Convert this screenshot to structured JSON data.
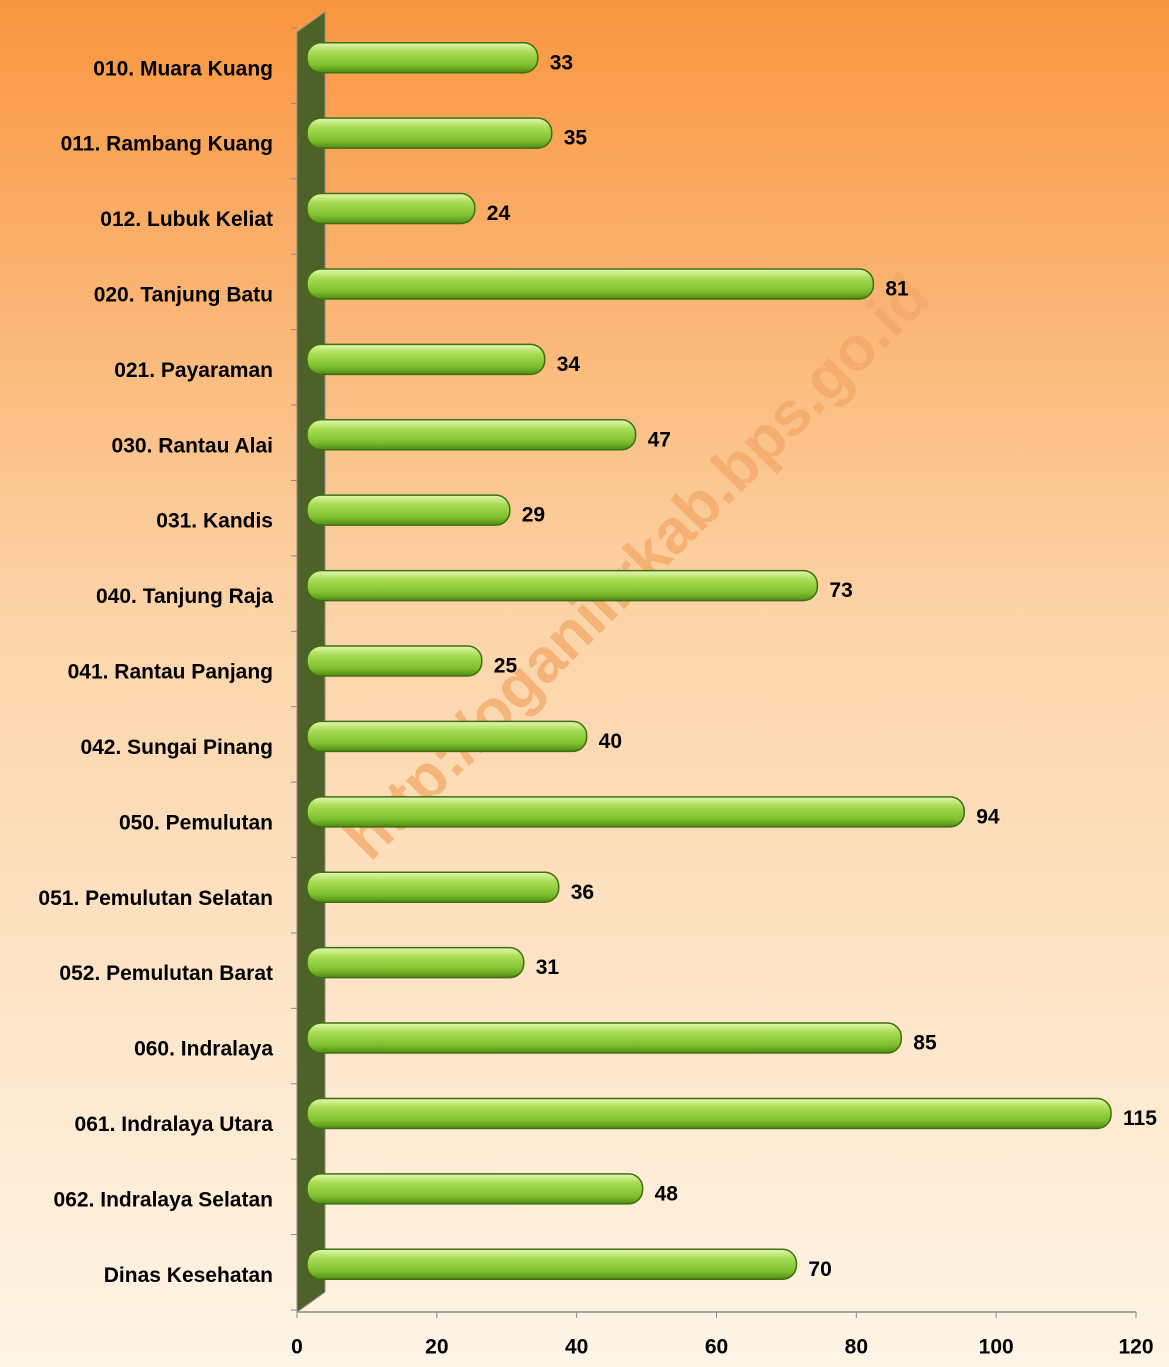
{
  "chart_data": {
    "type": "bar",
    "orientation": "horizontal",
    "categories": [
      "010. Muara Kuang",
      "011. Rambang Kuang",
      "012. Lubuk Keliat",
      "020. Tanjung Batu",
      "021. Payaraman",
      "030. Rantau Alai",
      "031. Kandis",
      "040. Tanjung Raja",
      "041. Rantau Panjang",
      "042. Sungai Pinang",
      "050. Pemulutan",
      "051. Pemulutan Selatan",
      "052. Pemulutan Barat",
      "060. Indralaya",
      "061. Indralaya Utara",
      "062. Indralaya Selatan",
      "Dinas Kesehatan"
    ],
    "values": [
      33,
      35,
      24,
      81,
      34,
      47,
      29,
      73,
      25,
      40,
      94,
      36,
      31,
      85,
      115,
      48,
      70
    ],
    "color": "#8cc63f",
    "xlim": [
      0,
      120
    ],
    "xticks": [
      0,
      20,
      40,
      60,
      80,
      100,
      120
    ],
    "grid": false,
    "watermark": "http://oganilirkab.bps.go.id"
  }
}
